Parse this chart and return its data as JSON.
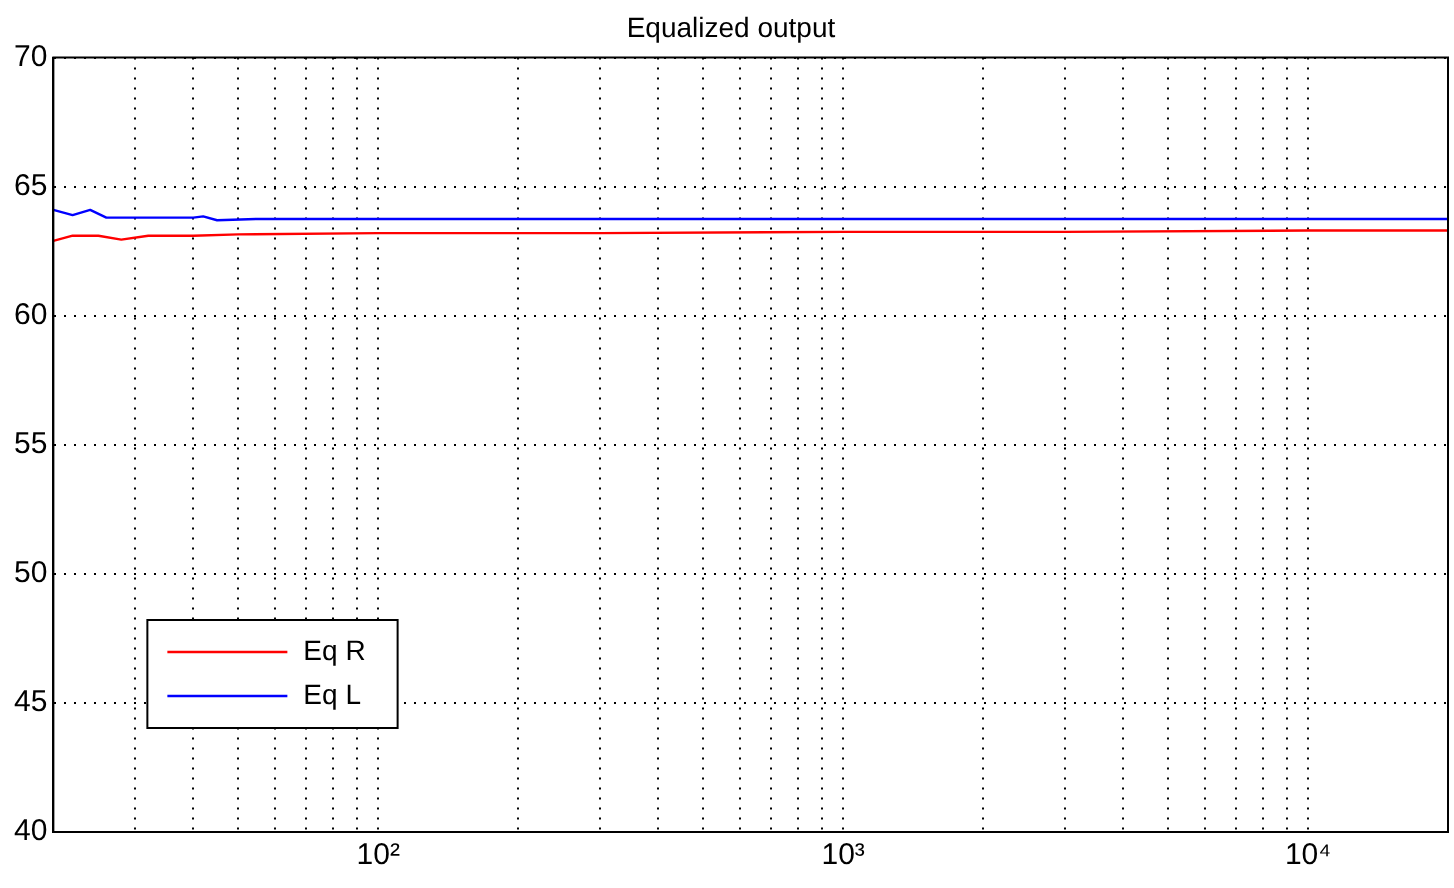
{
  "chart_data": {
    "type": "line",
    "title": "Equalized output",
    "log": "x",
    "grid": true,
    "legend": "bottom left",
    "line_style": "solid",
    "marker": "none",
    "xlim": [
      20,
      20000
    ],
    "ylim": [
      40,
      70
    ],
    "xticks": [
      {
        "value": 20,
        "label": null
      },
      {
        "value": 30,
        "label": null
      },
      {
        "value": 40,
        "label": null
      },
      {
        "value": 50,
        "label": null
      },
      {
        "value": 60,
        "label": null
      },
      {
        "value": 70,
        "label": null
      },
      {
        "value": 80,
        "label": null
      },
      {
        "value": 90,
        "label": null
      },
      {
        "value": 100,
        "label": "10²"
      },
      {
        "value": 200,
        "label": null
      },
      {
        "value": 300,
        "label": null
      },
      {
        "value": 400,
        "label": null
      },
      {
        "value": 500,
        "label": null
      },
      {
        "value": 600,
        "label": null
      },
      {
        "value": 700,
        "label": null
      },
      {
        "value": 800,
        "label": null
      },
      {
        "value": 900,
        "label": null
      },
      {
        "value": 1000,
        "label": "10³"
      },
      {
        "value": 2000,
        "label": null
      },
      {
        "value": 3000,
        "label": null
      },
      {
        "value": 4000,
        "label": null
      },
      {
        "value": 5000,
        "label": null
      },
      {
        "value": 6000,
        "label": null
      },
      {
        "value": 7000,
        "label": null
      },
      {
        "value": 8000,
        "label": null
      },
      {
        "value": 9000,
        "label": null
      },
      {
        "value": 10000,
        "label": "10⁴"
      },
      {
        "value": 20000,
        "label": null
      }
    ],
    "yticks": [
      40,
      45,
      50,
      55,
      60,
      65,
      70
    ],
    "series": [
      {
        "name": "Eq R",
        "color": "#ff0000",
        "x": [
          20,
          22,
          25,
          28,
          32,
          40,
          50,
          100,
          300,
          1000,
          3000,
          10000,
          20000
        ],
        "values": [
          62.9,
          63.1,
          63.1,
          62.95,
          63.1,
          63.1,
          63.15,
          63.2,
          63.2,
          63.25,
          63.25,
          63.3,
          63.3
        ]
      },
      {
        "name": "Eq L",
        "color": "#0000ff",
        "x": [
          20,
          22,
          24,
          26,
          30,
          40,
          42,
          45,
          55,
          100,
          1000,
          10000,
          20000
        ],
        "values": [
          64.1,
          63.9,
          64.1,
          63.8,
          63.8,
          63.8,
          63.85,
          63.7,
          63.75,
          63.75,
          63.75,
          63.75,
          63.75
        ]
      }
    ]
  }
}
